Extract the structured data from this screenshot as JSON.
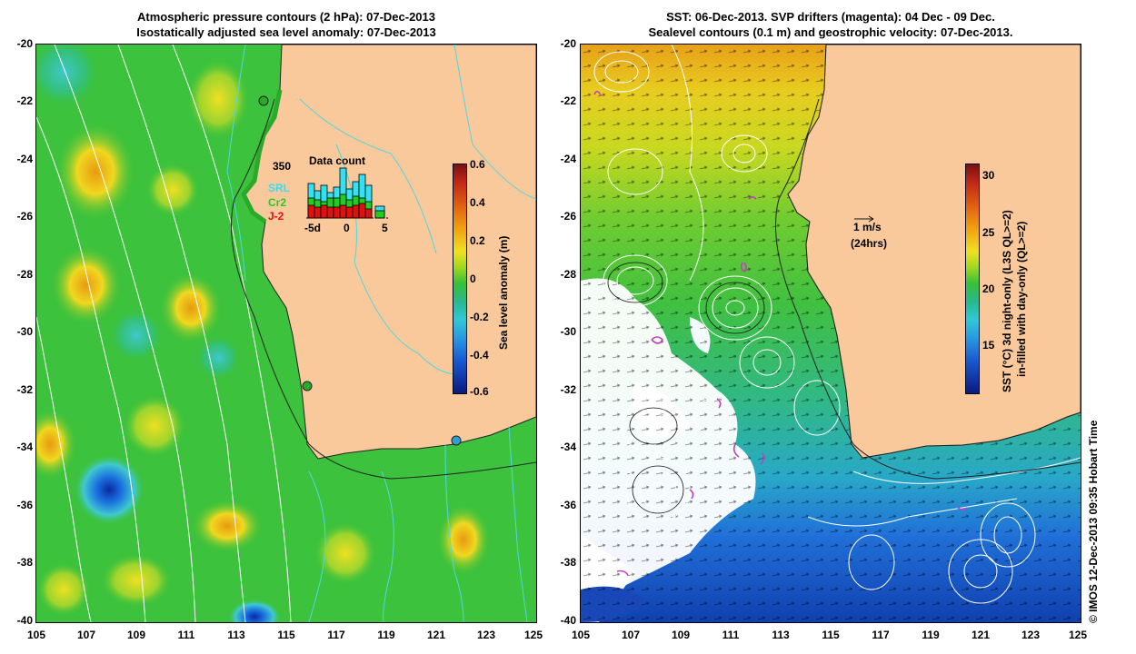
{
  "left_panel": {
    "title_line1": "Atmospheric pressure contours (2 hPa): 07-Dec-2013",
    "title_line2": "Isostatically adjusted sea level anomaly: 07-Dec-2013",
    "y_ticks": [
      "-20",
      "-22",
      "-24",
      "-26",
      "-28",
      "-30",
      "-32",
      "-34",
      "-36",
      "-38",
      "-40"
    ],
    "x_ticks": [
      "105",
      "107",
      "109",
      "111",
      "113",
      "115",
      "117",
      "119",
      "121",
      "123",
      "125"
    ],
    "colorbar": {
      "label": "Sea level anomaly (m)",
      "ticks": [
        "0.6",
        "0.4",
        "0.2",
        "0",
        "-0.2",
        "-0.4",
        "-0.6"
      ],
      "range": [
        -0.6,
        0.6
      ]
    },
    "inset": {
      "title": "Data count",
      "ymax_label": "350",
      "x_ticks": [
        "-5d",
        "0",
        "5"
      ],
      "series": [
        {
          "name": "SRL",
          "color": "#35e0f0"
        },
        {
          "name": "Cr2",
          "color": "#22cc22"
        },
        {
          "name": "J-2",
          "color": "#dd1111"
        }
      ]
    }
  },
  "right_panel": {
    "title_line1": "SST: 06-Dec-2013. SVP drifters (magenta): 04 Dec - 09 Dec.",
    "title_line2": "Sealevel contours (0.1 m) and geostrophic velocity: 07-Dec-2013.",
    "y_ticks": [
      "-20",
      "-22",
      "-24",
      "-26",
      "-28",
      "-30",
      "-32",
      "-34",
      "-36",
      "-38",
      "-40"
    ],
    "x_ticks": [
      "105",
      "107",
      "109",
      "111",
      "113",
      "115",
      "117",
      "119",
      "121",
      "123",
      "125"
    ],
    "scale_arrow_label1": "1 m/s",
    "scale_arrow_label2": "(24hrs)",
    "colorbar": {
      "label_line1": "SST (°C)  3d night-only (L3S QL>=2)",
      "label_line2": "in-filled with day-only (QL>=2)",
      "ticks": [
        "30",
        "25",
        "20",
        "15"
      ],
      "range": [
        11,
        31
      ]
    }
  },
  "credit": "© IMOS 12-Dec-2013 09:35 Hobart Time",
  "colors": {
    "land": "#f9c89b",
    "sea_base_left": "#3cc23c",
    "sea_base_right": "#58c830",
    "coast_line": "#222222",
    "contour_cyan": "#4fd8e0",
    "contour_white": "#ffffff",
    "drifter_magenta": "#c040c0"
  }
}
